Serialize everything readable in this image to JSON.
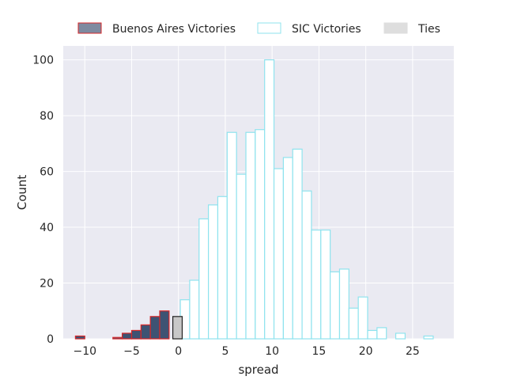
{
  "chart_data": {
    "type": "bar",
    "subtype": "histogram",
    "xlabel": "spread",
    "ylabel": "Count",
    "xlim": [
      -12.3,
      29.4
    ],
    "ylim": [
      0,
      105
    ],
    "xticks": [
      -10,
      -5,
      0,
      5,
      10,
      15,
      20,
      25
    ],
    "xtick_labels": [
      "−10",
      "−5",
      "0",
      "5",
      "10",
      "15",
      "20",
      "25"
    ],
    "yticks": [
      0,
      20,
      40,
      60,
      80,
      100
    ],
    "ytick_labels": [
      "0",
      "20",
      "40",
      "60",
      "80",
      "100"
    ],
    "grid": true,
    "legend_position": "top",
    "colors": {
      "background": "#eaeaf2",
      "grid": "#ffffff",
      "buenos_aires_fill": "#3e5373",
      "buenos_aires_edge": "#d62728",
      "sic_fill": "#ffffff",
      "sic_edge": "#8fe3ee",
      "ties_fill": "#c8c8c8",
      "ties_edge": "#222222",
      "ties_legend": "#dedede"
    },
    "series": [
      {
        "name": "Buenos Aires Victories",
        "bin_width": 1,
        "bins": [
          {
            "x0": -11,
            "x1": -10,
            "count": 1
          },
          {
            "x0": -7,
            "x1": -6,
            "count": 0.5
          },
          {
            "x0": -6,
            "x1": -5,
            "count": 2
          },
          {
            "x0": -5,
            "x1": -4,
            "count": 3
          },
          {
            "x0": -4,
            "x1": -3,
            "count": 5
          },
          {
            "x0": -3,
            "x1": -2,
            "count": 8
          },
          {
            "x0": -2,
            "x1": -1,
            "count": 10
          }
        ]
      },
      {
        "name": "SIC Victories",
        "bin_width": 1,
        "bins": [
          {
            "x0": 0.2,
            "x1": 1.2,
            "count": 14
          },
          {
            "x0": 1.2,
            "x1": 2.2,
            "count": 21
          },
          {
            "x0": 2.2,
            "x1": 3.2,
            "count": 43
          },
          {
            "x0": 3.2,
            "x1": 4.2,
            "count": 48
          },
          {
            "x0": 4.2,
            "x1": 5.2,
            "count": 51
          },
          {
            "x0": 5.2,
            "x1": 6.2,
            "count": 74
          },
          {
            "x0": 6.2,
            "x1": 7.2,
            "count": 59
          },
          {
            "x0": 7.2,
            "x1": 8.2,
            "count": 74
          },
          {
            "x0": 8.2,
            "x1": 9.2,
            "count": 75
          },
          {
            "x0": 9.2,
            "x1": 10.2,
            "count": 100
          },
          {
            "x0": 10.2,
            "x1": 11.2,
            "count": 61
          },
          {
            "x0": 11.2,
            "x1": 12.2,
            "count": 65
          },
          {
            "x0": 12.2,
            "x1": 13.2,
            "count": 68
          },
          {
            "x0": 13.2,
            "x1": 14.2,
            "count": 53
          },
          {
            "x0": 14.2,
            "x1": 15.2,
            "count": 39
          },
          {
            "x0": 15.2,
            "x1": 16.2,
            "count": 39
          },
          {
            "x0": 16.2,
            "x1": 17.2,
            "count": 24
          },
          {
            "x0": 17.2,
            "x1": 18.2,
            "count": 25
          },
          {
            "x0": 18.2,
            "x1": 19.2,
            "count": 11
          },
          {
            "x0": 19.2,
            "x1": 20.2,
            "count": 15
          },
          {
            "x0": 20.2,
            "x1": 21.2,
            "count": 3
          },
          {
            "x0": 21.2,
            "x1": 22.2,
            "count": 4
          },
          {
            "x0": 23.2,
            "x1": 24.2,
            "count": 2
          },
          {
            "x0": 26.2,
            "x1": 27.2,
            "count": 1
          }
        ]
      },
      {
        "name": "Ties",
        "bin_width": 1,
        "bins": [
          {
            "x0": -0.6,
            "x1": 0.4,
            "count": 8
          }
        ]
      }
    ]
  }
}
